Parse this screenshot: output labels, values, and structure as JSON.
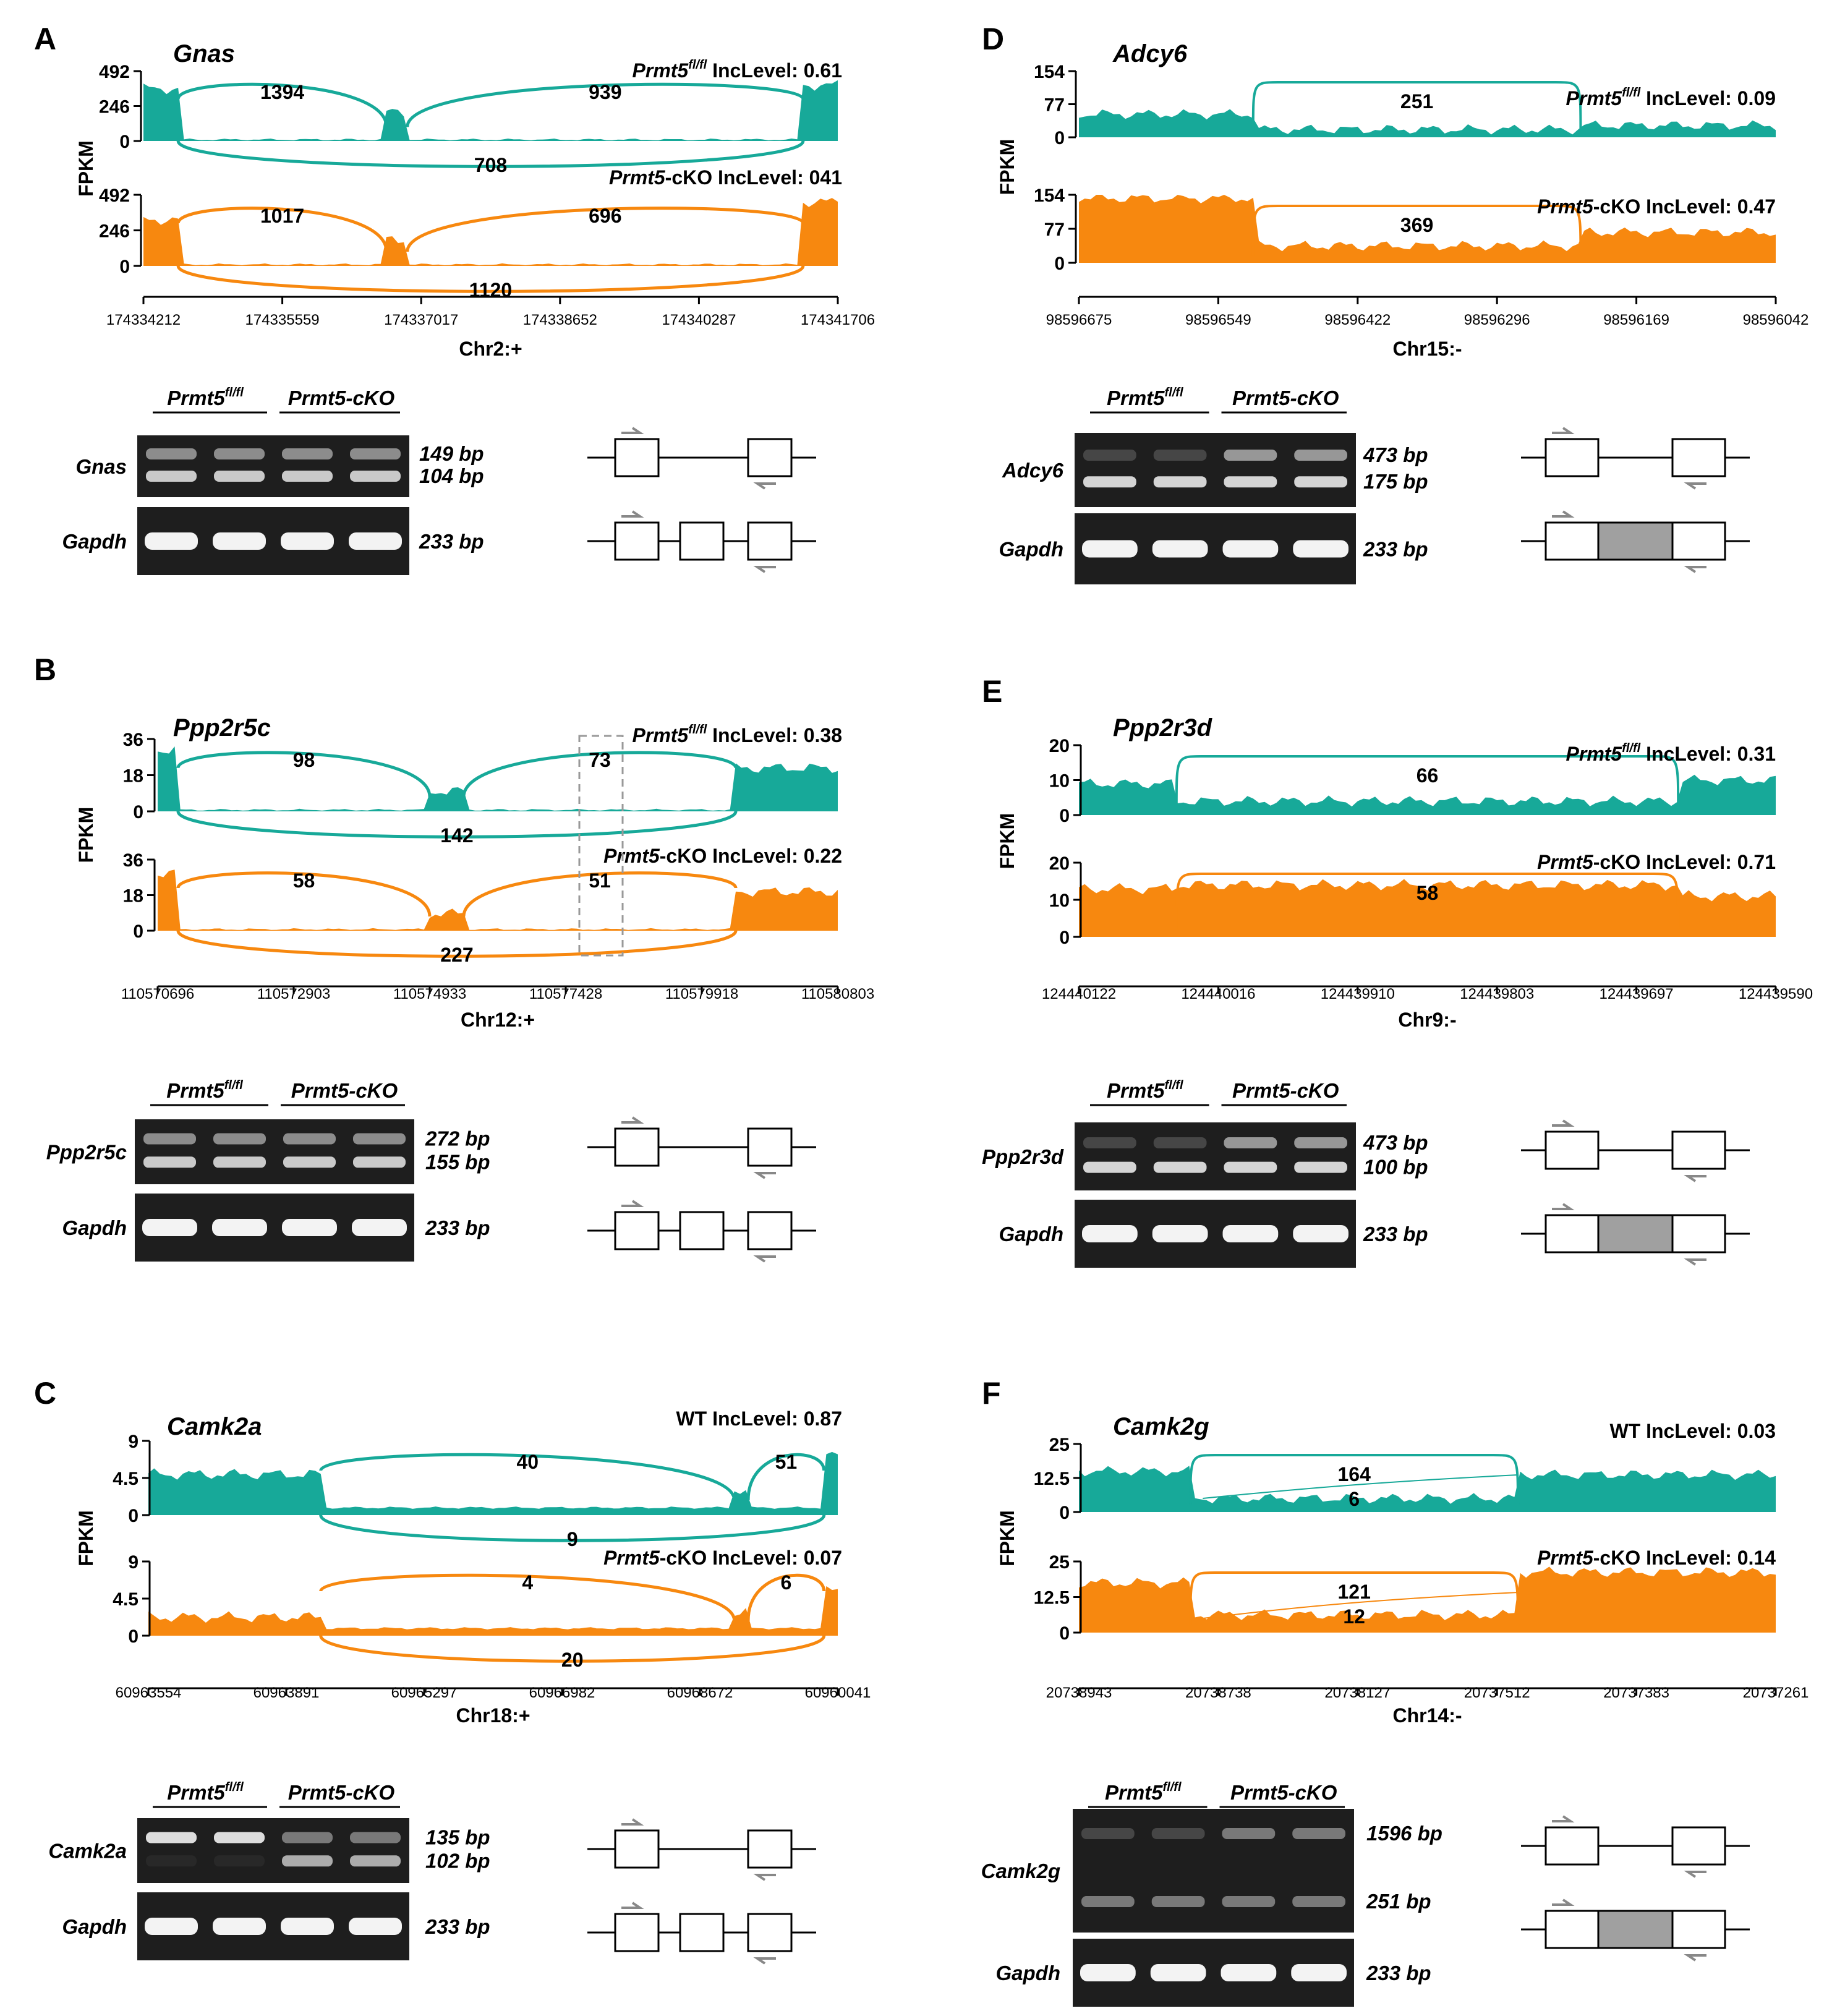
{
  "figure": {
    "colors": {
      "wt": "#17a999",
      "ko": "#f7880f",
      "axis": "#000000",
      "gel_band": "#e8e8e8",
      "gel_bg": "#1e1e1e",
      "skip_exon": "#a0a0a0"
    },
    "panels": [
      {
        "letter": "A",
        "gene": "Gnas",
        "chrom": "Chr2:+",
        "xticks": [
          "174334212",
          "174335559",
          "174337017",
          "174338652",
          "174340287",
          "174341706"
        ],
        "yaxis_label": "FPKM",
        "wt": {
          "label_main": "Prmt5",
          "label_sup": "fl/fl",
          "inc_text": " IncLevel: 0.61",
          "yticks": [
            "492",
            "246",
            "0"
          ],
          "junctions": [
            "1394",
            "939",
            "708"
          ]
        },
        "ko": {
          "label_main": "Prmt5",
          "label_sup": "",
          "inc_text": "-cKO IncLevel: 041",
          "yticks": [
            "492",
            "246",
            "0"
          ],
          "junctions": [
            "1017",
            "696",
            "1120"
          ]
        },
        "gel": {
          "header_wt_main": "Prmt5",
          "header_wt_sup": "fl/fl",
          "header_ko": "Prmt5-cKO",
          "gene_label": "Gnas",
          "gene_bands": [
            "149 bp",
            "104 bp"
          ],
          "ctrl_label": "Gapdh",
          "ctrl_band": "233 bp",
          "diagram": "three-exon"
        }
      },
      {
        "letter": "B",
        "gene": "Ppp2r5c",
        "chrom": "Chr12:+",
        "xticks": [
          "110570696",
          "110572903",
          "110574933",
          "110577428",
          "110579918",
          "110580803"
        ],
        "yaxis_label": "FPKM",
        "wt": {
          "label_main": "Prmt5",
          "label_sup": "fl/fl",
          "inc_text": " IncLevel: 0.38",
          "yticks": [
            "36",
            "18",
            "0"
          ],
          "junctions": [
            "98",
            "73",
            "142"
          ]
        },
        "ko": {
          "label_main": "Prmt5",
          "label_sup": "",
          "inc_text": "-cKO IncLevel: 0.22",
          "yticks": [
            "36",
            "18",
            "0"
          ],
          "junctions": [
            "58",
            "51",
            "227"
          ]
        },
        "gel": {
          "header_wt_main": "Prmt5",
          "header_wt_sup": "fl/fl",
          "header_ko": "Prmt5-cKO",
          "gene_label": "Ppp2r5c",
          "gene_bands": [
            "272 bp",
            "155 bp"
          ],
          "ctrl_label": "Gapdh",
          "ctrl_band": "233 bp",
          "diagram": "three-exon"
        }
      },
      {
        "letter": "C",
        "gene": "Camk2a",
        "chrom": "Chr18:+",
        "xticks": [
          "60963554",
          "60963891",
          "60965297",
          "60966982",
          "60968672",
          "60960041"
        ],
        "yaxis_label": "FPKM",
        "wt": {
          "label_main": "",
          "label_sup": "",
          "inc_text": "WT IncLevel: 0.87",
          "yticks": [
            "9",
            "4.5",
            "0"
          ],
          "junctions": [
            "40",
            "51",
            "9"
          ]
        },
        "ko": {
          "label_main": "Prmt5",
          "label_sup": "",
          "inc_text": "-cKO IncLevel: 0.07",
          "yticks": [
            "9",
            "4.5",
            "0"
          ],
          "junctions": [
            "4",
            "6",
            "20"
          ]
        },
        "gel": {
          "header_wt_main": "Prmt5",
          "header_wt_sup": "fl/fl",
          "header_ko": "Prmt5-cKO",
          "gene_label": "Camk2a",
          "gene_bands": [
            "135 bp",
            "102 bp"
          ],
          "ctrl_label": "Gapdh",
          "ctrl_band": "233 bp",
          "diagram": "three-exon"
        }
      },
      {
        "letter": "D",
        "gene": "Adcy6",
        "chrom": "Chr15:-",
        "xticks": [
          "98596675",
          "98596549",
          "98596422",
          "98596296",
          "98596169",
          "98596042"
        ],
        "yaxis_label": "FPKM",
        "wt": {
          "label_main": "Prmt5",
          "label_sup": "fl/fl",
          "inc_text": " IncLevel: 0.09",
          "yticks": [
            "154",
            "77",
            "0"
          ],
          "junctions": [
            "251"
          ]
        },
        "ko": {
          "label_main": "Prmt5",
          "label_sup": "",
          "inc_text": "-cKO IncLevel: 0.47",
          "yticks": [
            "154",
            "77",
            "0"
          ],
          "junctions": [
            "369"
          ]
        },
        "gel": {
          "header_wt_main": "Prmt5",
          "header_wt_sup": "fl/fl",
          "header_ko": "Prmt5-cKO",
          "gene_label": "Adcy6",
          "gene_bands": [
            "473 bp",
            "175 bp"
          ],
          "ctrl_label": "Gapdh",
          "ctrl_band": "233 bp",
          "diagram": "retained-intron"
        }
      },
      {
        "letter": "E",
        "gene": "Ppp2r3d",
        "chrom": "Chr9:-",
        "xticks": [
          "124440122",
          "124440016",
          "124439910",
          "124439803",
          "124439697",
          "124439590"
        ],
        "yaxis_label": "FPKM",
        "wt": {
          "label_main": "Prmt5",
          "label_sup": "fl/fl",
          "inc_text": " IncLevel: 0.31",
          "yticks": [
            "20",
            "10",
            "0"
          ],
          "junctions": [
            "66"
          ]
        },
        "ko": {
          "label_main": "Prmt5",
          "label_sup": "",
          "inc_text": "-cKO IncLevel: 0.71",
          "yticks": [
            "20",
            "10",
            "0"
          ],
          "junctions": [
            "58"
          ]
        },
        "gel": {
          "header_wt_main": "Prmt5",
          "header_wt_sup": "fl/fl",
          "header_ko": "Prmt5-cKO",
          "gene_label": "Ppp2r3d",
          "gene_bands": [
            "473 bp",
            "100 bp"
          ],
          "ctrl_label": "Gapdh",
          "ctrl_band": "233 bp",
          "diagram": "retained-intron"
        }
      },
      {
        "letter": "F",
        "gene": "Camk2g",
        "chrom": "Chr14:-",
        "xticks": [
          "20738943",
          "20738738",
          "20738127",
          "20737512",
          "20737383",
          "20737261"
        ],
        "yaxis_label": "FPKM",
        "wt": {
          "label_main": "",
          "label_sup": "",
          "inc_text": "WT IncLevel: 0.03",
          "yticks": [
            "25",
            "12.5",
            "0"
          ],
          "junctions": [
            "164",
            "6"
          ]
        },
        "ko": {
          "label_main": "Prmt5",
          "label_sup": "",
          "inc_text": "-cKO IncLevel: 0.14",
          "yticks": [
            "25",
            "12.5",
            "0"
          ],
          "junctions": [
            "121",
            "12"
          ]
        },
        "gel": {
          "header_wt_main": "Prmt5",
          "header_wt_sup": "fl/fl",
          "header_ko": "Prmt5-cKO",
          "gene_label": "Camk2g",
          "gene_bands": [
            "1596 bp",
            "251 bp"
          ],
          "ctrl_label": "Gapdh",
          "ctrl_band": "233 bp",
          "diagram": "retained-intron"
        }
      }
    ]
  }
}
